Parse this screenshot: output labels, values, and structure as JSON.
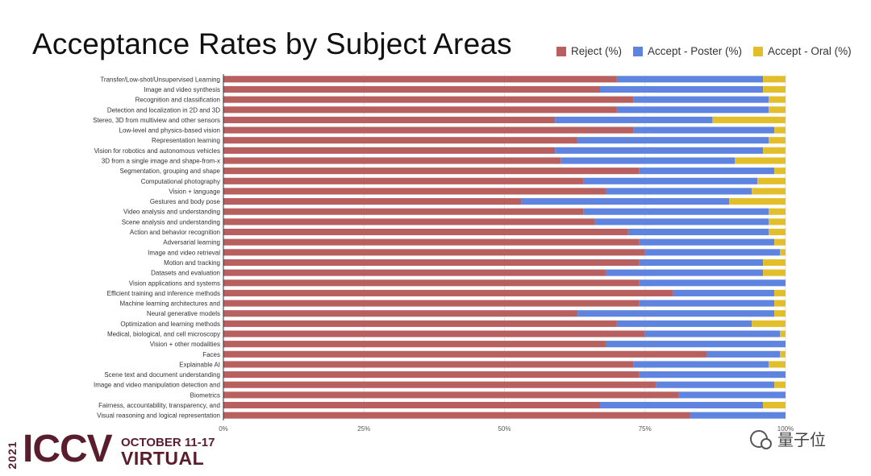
{
  "header": {
    "title": "Acceptance Rates by Subject Areas"
  },
  "colors": {
    "reject": "#b85f5f",
    "poster": "#5f84e0",
    "oral": "#e2bf2a",
    "grid": "#e6e6e6",
    "logo": "#5a1d2e"
  },
  "chart_data": {
    "type": "bar",
    "orientation": "horizontal",
    "stacked": true,
    "title": "Acceptance Rates by Subject Areas",
    "xlabel": "",
    "ylabel": "",
    "xlim": [
      0,
      100
    ],
    "x_ticks": [
      0,
      25,
      50,
      75,
      100
    ],
    "x_tick_labels": [
      "0%",
      "25%",
      "50%",
      "75%",
      "100%"
    ],
    "legend_position": "top-right",
    "grid": true,
    "categories": [
      "Transfer/Low-shot/Unsupervised Learning",
      "Image and video synthesis",
      "Recognition and classification",
      "Detection and localization in 2D and 3D",
      "Stereo, 3D from multiview and other sensors",
      "Low-level and physics-based vision",
      "Representation learning",
      "Vision for robotics and autonomous vehicles",
      "3D from a single image and shape-from-x",
      "Segmentation, grouping and shape",
      "Computational photography",
      "Vision + language",
      "Gestures and body pose",
      "Video analysis and understanding",
      "Scene analysis and understanding",
      "Action and behavior recognition",
      "Adversarial learning",
      "Image and video retrieval",
      "Motion and tracking",
      "Datasets and evaluation",
      "Vision applications and systems",
      "Efficient training and inference methods",
      "Machine learning architectures and",
      "Neural generative models",
      "Optimization and learning methods",
      "Medical, biological, and cell microscopy",
      "Vision + other modalities",
      "Faces",
      "Explainable AI",
      "Scene text and document understanding",
      "Image and video manipulation detection and",
      "Biometrics",
      "Fairness, accountability, transparency, and",
      "Visual reasoning and logical representation"
    ],
    "series": [
      {
        "name": "Reject (%)",
        "values": [
          70,
          67,
          73,
          70,
          59,
          73,
          63,
          59,
          60,
          74,
          64,
          68,
          53,
          64,
          66,
          72,
          74,
          75,
          74,
          68,
          74,
          80,
          74,
          63,
          70,
          75,
          68,
          86,
          73,
          74,
          77,
          81,
          67,
          83
        ]
      },
      {
        "name": "Accept - Poster (%)",
        "values": [
          26,
          29,
          24,
          27,
          28,
          25,
          34,
          37,
          31,
          24,
          31,
          26,
          37,
          33,
          31,
          25,
          24,
          24,
          22,
          28,
          26,
          18,
          24,
          35,
          24,
          24,
          32,
          13,
          24,
          26,
          21,
          19,
          29,
          17
        ]
      },
      {
        "name": "Accept - Oral (%)",
        "values": [
          4,
          4,
          3,
          3,
          13,
          2,
          3,
          4,
          9,
          2,
          5,
          6,
          10,
          3,
          3,
          3,
          2,
          1,
          4,
          4,
          0,
          2,
          2,
          2,
          6,
          1,
          0,
          1,
          3,
          0,
          2,
          0,
          4,
          0
        ]
      }
    ]
  },
  "footer": {
    "year": "2021",
    "logo_text": "ICCV",
    "date": "OCTOBER 11-17",
    "mode": "VIRTUAL",
    "watermark": "量子位"
  }
}
